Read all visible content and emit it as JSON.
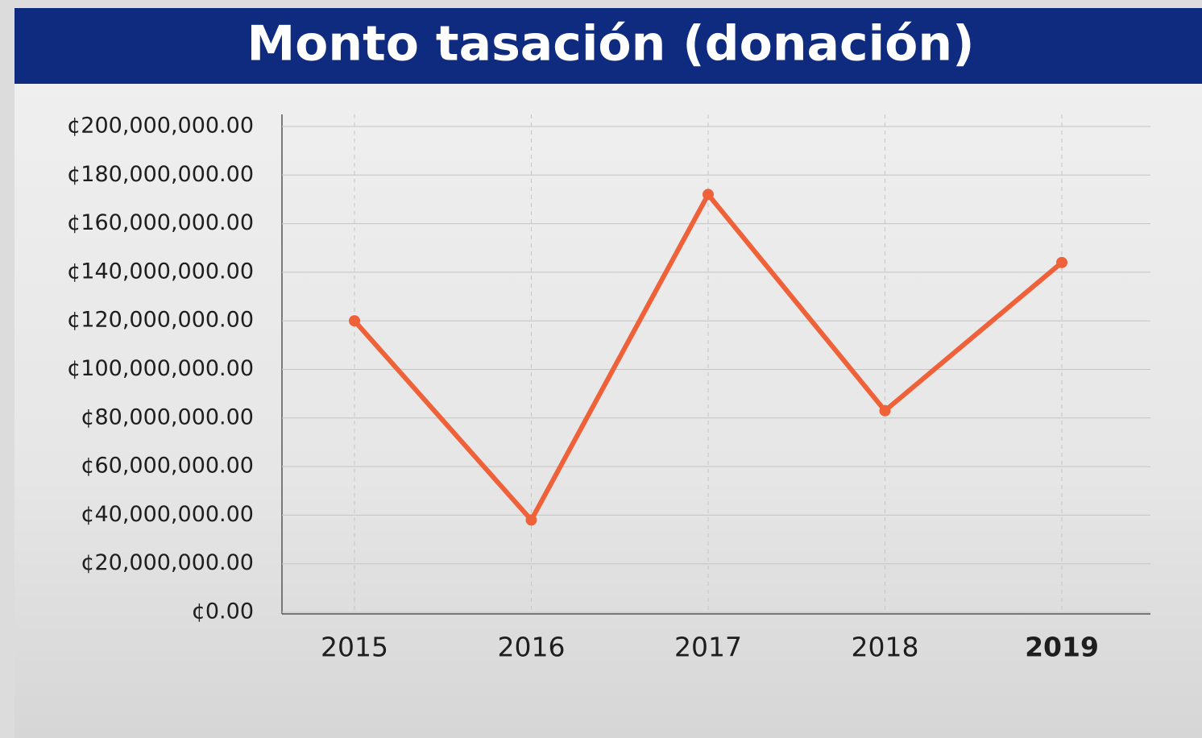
{
  "chart_data": {
    "type": "line",
    "title": "Monto tasación (donación)",
    "categories": [
      "2015",
      "2016",
      "2017",
      "2018",
      "2019"
    ],
    "series": [
      {
        "color": "#ef6139",
        "values": [
          120000000,
          38000000,
          172000000,
          83000000,
          144000000
        ]
      }
    ],
    "ylim": [
      0,
      200000000
    ],
    "yticks": [
      {
        "value": 0,
        "label": "¢0.00"
      },
      {
        "value": 20000000,
        "label": "¢20,000,000.00"
      },
      {
        "value": 40000000,
        "label": "¢40,000,000.00"
      },
      {
        "value": 60000000,
        "label": "¢60,000,000.00"
      },
      {
        "value": 80000000,
        "label": "¢80,000,000.00"
      },
      {
        "value": 100000000,
        "label": "¢100,000,000.00"
      },
      {
        "value": 120000000,
        "label": "¢120,000,000.00"
      },
      {
        "value": 140000000,
        "label": "¢140,000,000.00"
      },
      {
        "value": 160000000,
        "label": "¢160,000,000.00"
      },
      {
        "value": 180000000,
        "label": "¢180,000,000.00"
      },
      {
        "value": 200000000,
        "label": "¢200,000,000.00"
      }
    ],
    "grid": true
  }
}
